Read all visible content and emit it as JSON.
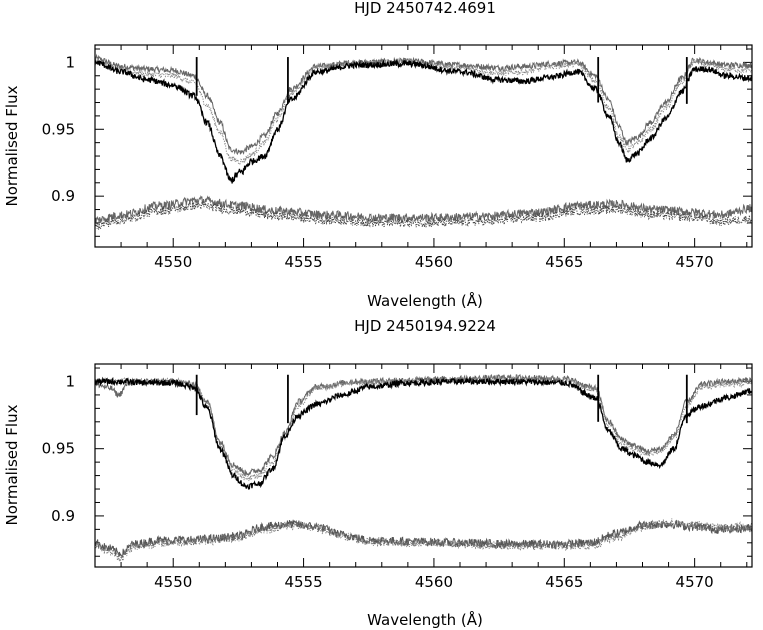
{
  "chart_data": [
    {
      "type": "line",
      "title": "HJD 2450742.4691",
      "xlabel": "Wavelength (Å)",
      "ylabel": "Normalised Flux",
      "xlim": [
        4547,
        4572.2
      ],
      "ylim": [
        0.862,
        1.013
      ],
      "xticks": [
        4550,
        4555,
        4560,
        4565,
        4570
      ],
      "xtick_labels": [
        "4550",
        "4555",
        "4560",
        "4565",
        "4570"
      ],
      "yticks": [
        0.9,
        0.95,
        1.0
      ],
      "ytick_labels": [
        "0.9",
        "0.95",
        "1"
      ],
      "line_markers": [
        {
          "x": 4550.9,
          "y_top": 1.004,
          "y_bottom": 0.975
        },
        {
          "x": 4554.4,
          "y_top": 1.004,
          "y_bottom": 0.969
        },
        {
          "x": 4566.3,
          "y_top": 1.004,
          "y_bottom": 0.97
        },
        {
          "x": 4569.7,
          "y_top": 1.004,
          "y_bottom": 0.969
        }
      ],
      "series": [
        {
          "color": "#666666",
          "style": "solid",
          "width": 1.0,
          "x": [
            4547,
            4548,
            4549,
            4550,
            4550.8,
            4551.3,
            4551.8,
            4552.2,
            4552.6,
            4553.0,
            4553.5,
            4554.0,
            4554.5,
            4555.5,
            4557,
            4559,
            4561,
            4562.5,
            4563.5,
            4564.5,
            4565.5,
            4566.2,
            4566.7,
            4567.1,
            4567.4,
            4567.8,
            4568.3,
            4568.9,
            4569.5,
            4570.0,
            4570.5,
            4571.2,
            4572.2
          ],
          "y": [
            1.003,
            0.997,
            0.995,
            0.994,
            0.99,
            0.975,
            0.955,
            0.935,
            0.933,
            0.937,
            0.945,
            0.962,
            0.98,
            0.997,
            1.0,
            1.001,
            0.998,
            0.996,
            0.997,
            0.999,
            1.0,
            0.99,
            0.972,
            0.952,
            0.94,
            0.944,
            0.955,
            0.97,
            0.988,
            1.002,
            1.0,
            0.998,
            0.998
          ]
        },
        {
          "color": "#888888",
          "style": "dotted",
          "width": 1.0,
          "x": [
            4547,
            4548,
            4549,
            4550,
            4550.8,
            4551.3,
            4551.8,
            4552.2,
            4552.6,
            4553.0,
            4553.5,
            4554.0,
            4554.5,
            4555.5,
            4557,
            4559,
            4561,
            4562.5,
            4563.5,
            4564.5,
            4565.5,
            4566.2,
            4566.7,
            4567.1,
            4567.4,
            4567.8,
            4568.3,
            4568.9,
            4569.5,
            4570.0,
            4570.5,
            4571.2,
            4572.2
          ],
          "y": [
            1.001,
            0.994,
            0.991,
            0.99,
            0.985,
            0.968,
            0.948,
            0.928,
            0.926,
            0.931,
            0.94,
            0.958,
            0.977,
            0.996,
            0.999,
            1.0,
            0.996,
            0.992,
            0.993,
            0.997,
            0.999,
            0.986,
            0.966,
            0.945,
            0.935,
            0.939,
            0.95,
            0.966,
            0.985,
            1.001,
            0.998,
            0.995,
            0.994
          ]
        },
        {
          "color": "#000000",
          "style": "solid",
          "width": 1.3,
          "x": [
            4547,
            4548,
            4549,
            4550,
            4550.8,
            4551.3,
            4551.8,
            4552.2,
            4552.6,
            4553.0,
            4553.5,
            4554.0,
            4554.5,
            4555.5,
            4557,
            4559,
            4561,
            4562.5,
            4563.5,
            4564.5,
            4565.5,
            4566.2,
            4566.7,
            4567.1,
            4567.4,
            4567.8,
            4568.3,
            4568.9,
            4569.5,
            4570.0,
            4570.5,
            4571.2,
            4572.2
          ],
          "y": [
            1.0,
            0.993,
            0.987,
            0.983,
            0.975,
            0.955,
            0.93,
            0.912,
            0.918,
            0.926,
            0.93,
            0.95,
            0.972,
            0.993,
            0.998,
            0.999,
            0.993,
            0.987,
            0.986,
            0.989,
            0.993,
            0.98,
            0.96,
            0.94,
            0.927,
            0.932,
            0.943,
            0.958,
            0.978,
            0.995,
            0.995,
            0.99,
            0.988
          ]
        },
        {
          "color": "#666666",
          "style": "solid",
          "width": 1.0,
          "x": [
            4547,
            4548,
            4549.5,
            4551,
            4552.5,
            4554,
            4556,
            4558,
            4560,
            4562,
            4564,
            4565.5,
            4567,
            4568.5,
            4570,
            4571,
            4572.2
          ],
          "y": [
            0.882,
            0.886,
            0.893,
            0.897,
            0.893,
            0.889,
            0.886,
            0.884,
            0.884,
            0.885,
            0.888,
            0.893,
            0.894,
            0.89,
            0.888,
            0.886,
            0.891
          ]
        },
        {
          "color": "#444444",
          "style": "dotted",
          "width": 1.0,
          "x": [
            4547,
            4548,
            4549.5,
            4551,
            4552.5,
            4554,
            4556,
            4558,
            4560,
            4562,
            4564,
            4565.5,
            4567,
            4568.5,
            4570,
            4571,
            4572.2
          ],
          "y": [
            0.878,
            0.882,
            0.889,
            0.893,
            0.889,
            0.885,
            0.882,
            0.88,
            0.88,
            0.881,
            0.884,
            0.889,
            0.89,
            0.886,
            0.884,
            0.881,
            0.883
          ]
        }
      ]
    },
    {
      "type": "line",
      "title": "HJD 2450194.9224",
      "xlabel": "Wavelength (Å)",
      "ylabel": "Normalised Flux",
      "xlim": [
        4547,
        4572.2
      ],
      "ylim": [
        0.862,
        1.013
      ],
      "xticks": [
        4550,
        4555,
        4560,
        4565,
        4570
      ],
      "xtick_labels": [
        "4550",
        "4555",
        "4560",
        "4565",
        "4570"
      ],
      "yticks": [
        0.9,
        0.95,
        1.0
      ],
      "ytick_labels": [
        "0.9",
        "0.95",
        "1"
      ],
      "line_markers": [
        {
          "x": 4550.9,
          "y_top": 1.005,
          "y_bottom": 0.975
        },
        {
          "x": 4554.4,
          "y_top": 1.005,
          "y_bottom": 0.969
        },
        {
          "x": 4566.3,
          "y_top": 1.005,
          "y_bottom": 0.97
        },
        {
          "x": 4569.7,
          "y_top": 1.005,
          "y_bottom": 0.969
        }
      ],
      "series": [
        {
          "color": "#666666",
          "style": "solid",
          "width": 1.0,
          "x": [
            4547,
            4547.6,
            4547.9,
            4548.3,
            4549,
            4550,
            4550.8,
            4551.3,
            4551.8,
            4552.3,
            4552.8,
            4553.3,
            4553.8,
            4554.3,
            4554.8,
            4555.5,
            4557,
            4559,
            4561,
            4563,
            4565,
            4566.2,
            4566.7,
            4567.2,
            4567.7,
            4568.2,
            4568.7,
            4569.2,
            4569.7,
            4570.3,
            4571.2,
            4572.2
          ],
          "y": [
            0.998,
            0.995,
            0.99,
            0.999,
            1.0,
            1.0,
            0.998,
            0.985,
            0.955,
            0.938,
            0.932,
            0.934,
            0.944,
            0.962,
            0.985,
            0.996,
            1.0,
            1.001,
            1.002,
            1.003,
            1.002,
            0.995,
            0.97,
            0.957,
            0.952,
            0.948,
            0.95,
            0.96,
            0.985,
            0.998,
            1.0,
            1.001
          ]
        },
        {
          "color": "#888888",
          "style": "dotted",
          "width": 1.0,
          "x": [
            4547,
            4548,
            4549,
            4550,
            4550.8,
            4551.3,
            4551.8,
            4552.3,
            4552.8,
            4553.3,
            4553.8,
            4554.3,
            4554.8,
            4555.5,
            4557,
            4559,
            4561,
            4563,
            4565,
            4566.2,
            4566.7,
            4567.2,
            4567.7,
            4568.2,
            4568.7,
            4569.2,
            4569.7,
            4570.3,
            4571.2,
            4572.2
          ],
          "y": [
            1.0,
            1.0,
            1.0,
            1.0,
            0.998,
            0.984,
            0.952,
            0.935,
            0.928,
            0.93,
            0.94,
            0.958,
            0.982,
            0.995,
            0.999,
            1.0,
            1.001,
            1.002,
            1.001,
            0.994,
            0.968,
            0.954,
            0.949,
            0.946,
            0.948,
            0.958,
            0.982,
            0.996,
            0.998,
            0.999
          ]
        },
        {
          "color": "#000000",
          "style": "solid",
          "width": 1.3,
          "x": [
            4547,
            4548,
            4549,
            4550,
            4550.8,
            4551.3,
            4551.8,
            4552.3,
            4552.8,
            4553.3,
            4553.8,
            4554.3,
            4554.8,
            4555.5,
            4556.5,
            4557.5,
            4559,
            4561,
            4563,
            4565,
            4566.2,
            4566.7,
            4567.2,
            4567.7,
            4568.2,
            4568.7,
            4569.2,
            4569.7,
            4570.3,
            4571.2,
            4572.2
          ],
          "y": [
            1.0,
            1.0,
            0.999,
            0.999,
            0.996,
            0.98,
            0.95,
            0.93,
            0.922,
            0.924,
            0.935,
            0.96,
            0.975,
            0.983,
            0.99,
            0.996,
            0.999,
            1.0,
            1.0,
            0.999,
            0.988,
            0.963,
            0.95,
            0.945,
            0.94,
            0.938,
            0.95,
            0.976,
            0.982,
            0.988,
            0.993
          ]
        },
        {
          "color": "#555555",
          "style": "solid",
          "width": 1.0,
          "x": [
            4547,
            4547.5,
            4548,
            4548.5,
            4549.5,
            4550.5,
            4551.5,
            4552.5,
            4553.5,
            4554.5,
            4555.5,
            4556.5,
            4557.5,
            4559,
            4561,
            4563,
            4565,
            4566,
            4567,
            4568,
            4569,
            4570,
            4571,
            4572.2
          ],
          "y": [
            0.88,
            0.876,
            0.872,
            0.879,
            0.882,
            0.882,
            0.883,
            0.885,
            0.892,
            0.894,
            0.892,
            0.886,
            0.882,
            0.881,
            0.88,
            0.879,
            0.879,
            0.88,
            0.887,
            0.893,
            0.894,
            0.892,
            0.89,
            0.891
          ]
        },
        {
          "color": "#777777",
          "style": "dotted",
          "width": 1.0,
          "x": [
            4547,
            4547.5,
            4548,
            4548.5,
            4549.5,
            4550.5,
            4551.5,
            4552.5,
            4553.5,
            4554.5,
            4555.5,
            4556.5,
            4557.5,
            4559,
            4561,
            4563,
            4565,
            4566,
            4567,
            4568,
            4569,
            4570,
            4571,
            4572.2
          ],
          "y": [
            0.879,
            0.874,
            0.869,
            0.877,
            0.88,
            0.881,
            0.882,
            0.884,
            0.89,
            0.893,
            0.891,
            0.885,
            0.881,
            0.88,
            0.879,
            0.878,
            0.878,
            0.878,
            0.884,
            0.892,
            0.895,
            0.893,
            0.891,
            0.892
          ]
        }
      ]
    }
  ]
}
